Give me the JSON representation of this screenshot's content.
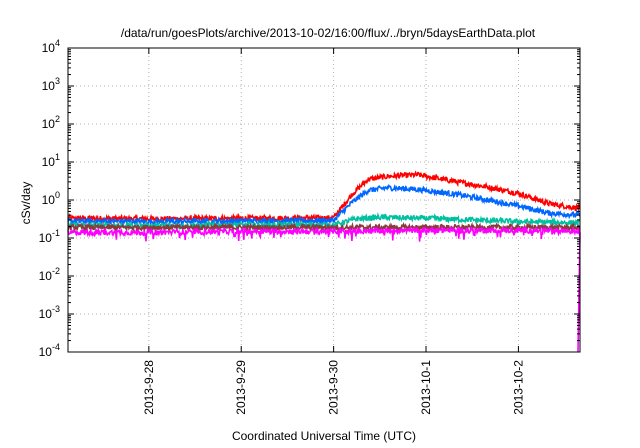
{
  "chart_data": {
    "type": "line",
    "title": "/data/run/goesPlots/archive/2013-10-02/16:00/flux/../bryn/5daysEarthData.plot",
    "xlabel": "Coordinated Universal Time (UTC)",
    "ylabel": "cSv/day",
    "y_scale": "log",
    "ylim": [
      0.0001,
      10000
    ],
    "y_ticks": [
      {
        "value": 0.0001,
        "base": "10",
        "exp": "-4"
      },
      {
        "value": 0.001,
        "base": "10",
        "exp": "-3"
      },
      {
        "value": 0.01,
        "base": "10",
        "exp": "-2"
      },
      {
        "value": 0.1,
        "base": "10",
        "exp": "-1"
      },
      {
        "value": 1,
        "base": "10",
        "exp": "0"
      },
      {
        "value": 10,
        "base": "10",
        "exp": "1"
      },
      {
        "value": 100,
        "base": "10",
        "exp": "2"
      },
      {
        "value": 1000,
        "base": "10",
        "exp": "3"
      },
      {
        "value": 10000,
        "base": "10",
        "exp": "4"
      }
    ],
    "xlim": [
      "2013-09-27 03:00",
      "2013-10-02 16:00"
    ],
    "x_ticks": [
      "2013-9-28",
      "2013-9-29",
      "2013-9-30",
      "2013-10-1",
      "2013-10-2"
    ],
    "grid": true,
    "legend": "none",
    "series": [
      {
        "color": "#ff0000",
        "x": [
          "2013-09-27 03:00",
          "2013-09-28 00:00",
          "2013-09-29 00:00",
          "2013-09-30 00:00",
          "2013-09-30 05:00",
          "2013-09-30 09:00",
          "2013-09-30 14:00",
          "2013-09-30 22:00",
          "2013-10-01 08:00",
          "2013-10-01 16:00",
          "2013-10-02 00:00",
          "2013-10-02 08:00",
          "2013-10-02 16:00"
        ],
        "values": [
          0.33,
          0.32,
          0.33,
          0.34,
          1.5,
          3.5,
          4.2,
          4.6,
          3.0,
          2.2,
          1.5,
          0.8,
          0.6
        ]
      },
      {
        "color": "#0066ff",
        "x": [
          "2013-09-27 03:00",
          "2013-09-28 00:00",
          "2013-09-29 00:00",
          "2013-09-30 00:00",
          "2013-09-30 05:00",
          "2013-09-30 09:00",
          "2013-09-30 14:00",
          "2013-09-30 22:00",
          "2013-10-01 08:00",
          "2013-10-01 16:00",
          "2013-10-02 00:00",
          "2013-10-02 08:00",
          "2013-10-02 16:00"
        ],
        "values": [
          0.28,
          0.27,
          0.28,
          0.29,
          0.9,
          1.8,
          2.1,
          1.9,
          1.4,
          1.0,
          0.7,
          0.45,
          0.4
        ]
      },
      {
        "color": "#00c0a0",
        "x": [
          "2013-09-27 03:00",
          "2013-09-28 00:00",
          "2013-09-29 00:00",
          "2013-09-30 00:00",
          "2013-09-30 06:00",
          "2013-09-30 12:00",
          "2013-10-01 00:00",
          "2013-10-01 12:00",
          "2013-10-02 00:00",
          "2013-10-02 16:00"
        ],
        "values": [
          0.22,
          0.21,
          0.22,
          0.22,
          0.32,
          0.35,
          0.33,
          0.3,
          0.27,
          0.25
        ]
      },
      {
        "color": "#8b3a3a",
        "x": [
          "2013-09-27 03:00",
          "2013-09-29 00:00",
          "2013-10-01 00:00",
          "2013-10-02 16:00"
        ],
        "values": [
          0.19,
          0.19,
          0.19,
          0.19
        ]
      },
      {
        "color": "#ff00ff",
        "x": [
          "2013-09-27 03:00",
          "2013-09-28 00:00",
          "2013-09-29 00:00",
          "2013-09-30 00:00",
          "2013-10-01 00:00",
          "2013-10-02 00:00",
          "2013-10-02 16:00"
        ],
        "values": [
          0.14,
          0.14,
          0.15,
          0.15,
          0.16,
          0.16,
          0.15
        ]
      }
    ]
  }
}
